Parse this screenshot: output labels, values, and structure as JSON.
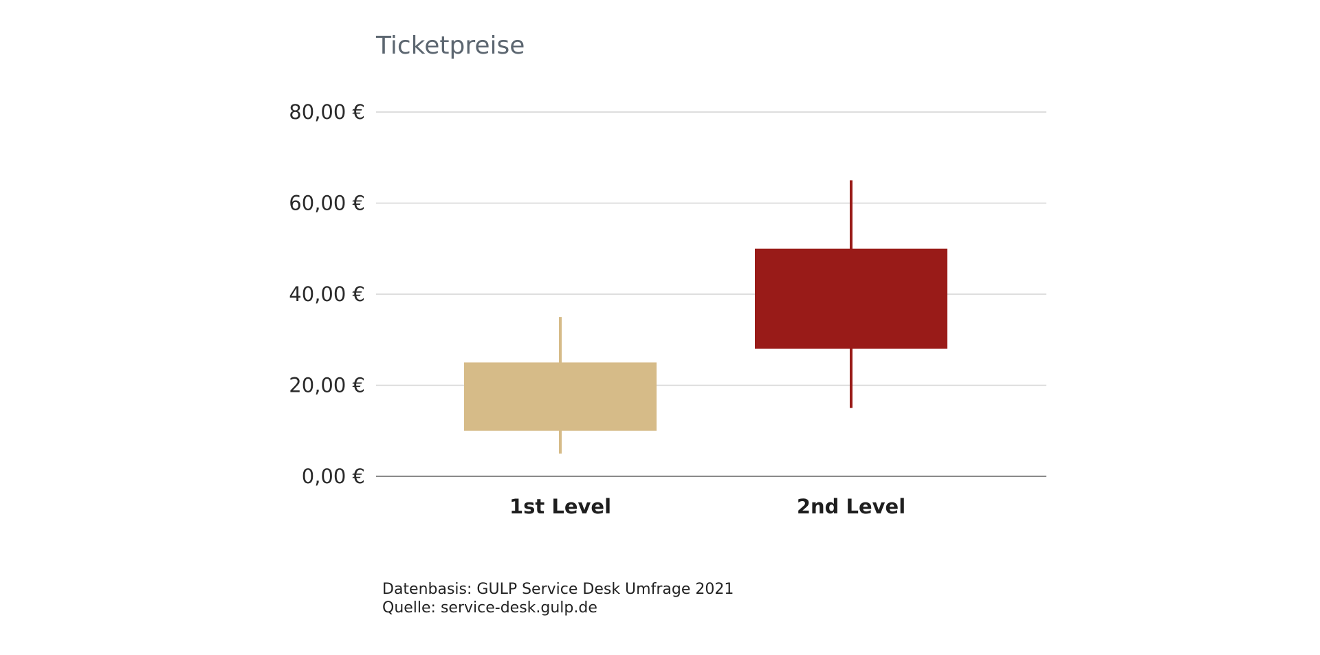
{
  "chart_data": {
    "type": "boxplot",
    "title": "Ticketpreise",
    "xlabel": "",
    "ylabel": "",
    "ylim": [
      0,
      80
    ],
    "yticks": [
      0,
      20,
      40,
      60,
      80
    ],
    "ytick_labels": [
      "0,00 €",
      "20,00 €",
      "40,00 €",
      "60,00 €",
      "80,00 €"
    ],
    "grid": true,
    "categories": [
      "1st Level",
      "2nd Level"
    ],
    "boxes": [
      {
        "category": "1st Level",
        "whisker_low": 5,
        "box_low": 10,
        "box_high": 25,
        "whisker_high": 35,
        "color": "#d6bb88"
      },
      {
        "category": "2nd Level",
        "whisker_low": 15,
        "box_low": 28,
        "box_high": 50,
        "whisker_high": 65,
        "color": "#991b18"
      }
    ]
  },
  "footnote": {
    "line1": "Datenbasis: GULP Service Desk Umfrage 2021",
    "line2": "Quelle: service-desk.gulp.de"
  }
}
